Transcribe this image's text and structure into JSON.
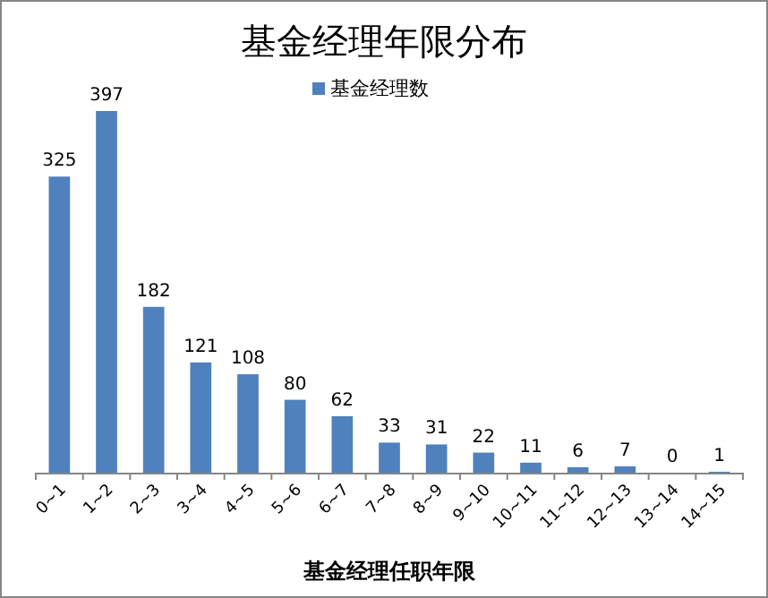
{
  "chart_data": {
    "type": "bar",
    "title": "基金经理年限分布",
    "xlabel": "基金经理任职年限",
    "categories": [
      "0~1",
      "1~2",
      "2~3",
      "3~4",
      "4~5",
      "5~6",
      "6~7",
      "7~8",
      "8~9",
      "9~10",
      "10~11",
      "11~12",
      "12~13",
      "13~14",
      "14~15"
    ],
    "series": [
      {
        "name": "基金经理数",
        "color": "#4f81bd",
        "values": [
          325,
          397,
          182,
          121,
          108,
          80,
          62,
          33,
          31,
          22,
          11,
          6,
          7,
          0,
          1
        ]
      }
    ],
    "data_labels": true,
    "legend": "top",
    "grid": false
  }
}
